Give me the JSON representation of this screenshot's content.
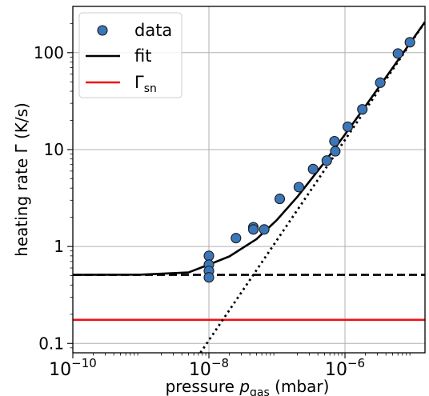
{
  "chart_data": {
    "type": "scatter",
    "x_scale": "log",
    "y_scale": "log",
    "xlim": [
      1e-10,
      1.5e-05
    ],
    "ylim": [
      0.08,
      300
    ],
    "grid": true,
    "legend_position": "top-left",
    "xlabel": {
      "prefix": "pressure ",
      "var": "p",
      "sub": "gas",
      "suffix": " (mbar)"
    },
    "ylabel": "heating rate Γ (K/s)",
    "x_ticks": [
      {
        "value": 1e-10,
        "base": "10",
        "exp": "−10"
      },
      {
        "value": 1e-08,
        "base": "10",
        "exp": "−8"
      },
      {
        "value": 1e-06,
        "base": "10",
        "exp": "−6"
      }
    ],
    "y_ticks": [
      {
        "value": 0.1,
        "label": "0.1"
      },
      {
        "value": 1,
        "label": "1"
      },
      {
        "value": 10,
        "label": "10"
      },
      {
        "value": 100,
        "label": "100"
      }
    ],
    "legend": [
      {
        "label": "data",
        "kind": "marker",
        "color": "#3b76b8"
      },
      {
        "label": "fit",
        "kind": "line",
        "color": "#000000"
      },
      {
        "label": "Γ",
        "sub": "sn",
        "kind": "line",
        "color": "#ee1111"
      }
    ],
    "series": [
      {
        "name": "data",
        "kind": "scatter",
        "color": "#3b76b8",
        "x": [
          1e-08,
          1e-08,
          1e-08,
          1e-08,
          2.5e-08,
          4.5e-08,
          4.5e-08,
          6.5e-08,
          1.1e-07,
          2.1e-07,
          3.4e-07,
          5.4e-07,
          7e-07,
          7.2e-07,
          1.1e-06,
          1.8e-06,
          3.3e-06,
          6e-06,
          9e-06
        ],
        "y": [
          0.8,
          0.65,
          0.56,
          0.48,
          1.22,
          1.58,
          1.5,
          1.5,
          3.1,
          4.1,
          6.3,
          7.7,
          12.2,
          9.6,
          17.2,
          26.0,
          49.0,
          98.0,
          128.0
        ]
      },
      {
        "name": "fit",
        "kind": "line",
        "color": "#000000",
        "x": [
          1e-10,
          1e-09,
          5e-09,
          1e-08,
          2e-08,
          5e-08,
          1e-07,
          2e-07,
          5e-07,
          1e-06,
          2e-06,
          5e-06,
          1.5e-05
        ],
        "y": [
          0.51,
          0.512,
          0.54,
          0.65,
          0.79,
          1.19,
          1.88,
          3.26,
          7.4,
          14.3,
          28.1,
          69.5,
          207.5
        ]
      }
    ],
    "reference_lines": [
      {
        "type": "horizontal",
        "y": 0.51,
        "style": "dashed",
        "color": "#000000"
      },
      {
        "type": "horizontal",
        "y": 0.175,
        "style": "solid",
        "color": "#ee1111"
      },
      {
        "type": "diagonal",
        "style": "dotted",
        "color": "#000000",
        "points": [
          [
            7.5e-09,
            0.08
          ],
          [
            1.5e-05,
            207
          ]
        ]
      }
    ]
  }
}
